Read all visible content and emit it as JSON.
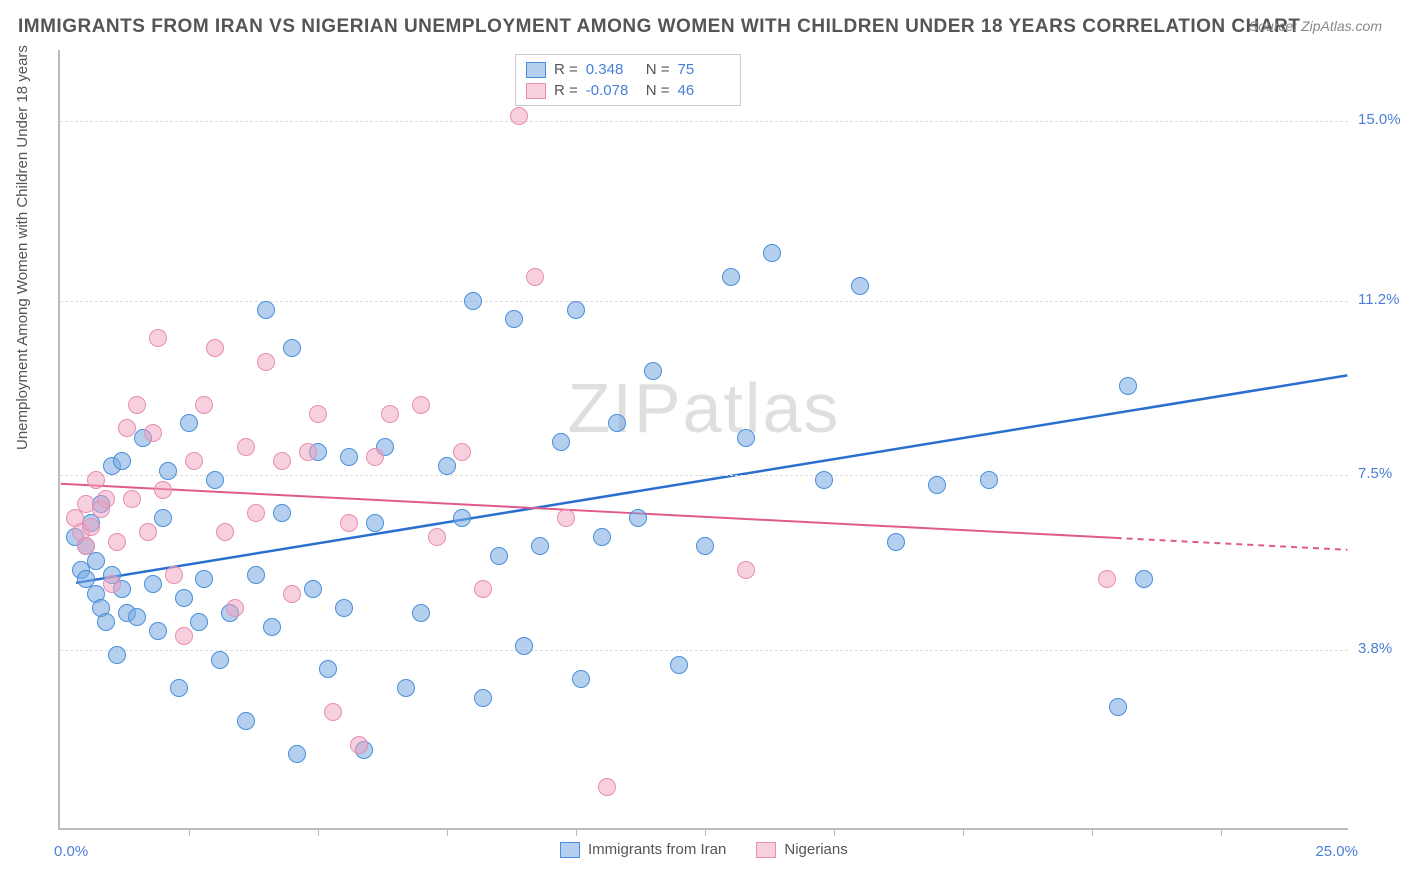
{
  "title": "IMMIGRANTS FROM IRAN VS NIGERIAN UNEMPLOYMENT AMONG WOMEN WITH CHILDREN UNDER 18 YEARS CORRELATION CHART",
  "source": "Source: ZipAtlas.com",
  "ylabel": "Unemployment Among Women with Children Under 18 years",
  "watermark": "ZIPatlas",
  "chart": {
    "type": "scatter",
    "xlim": [
      0,
      25
    ],
    "ylim": [
      0,
      16.5
    ],
    "xlabel_min": "0.0%",
    "xlabel_max": "25.0%",
    "yticks": [
      {
        "val": 3.8,
        "label": "3.8%"
      },
      {
        "val": 7.5,
        "label": "7.5%"
      },
      {
        "val": 11.2,
        "label": "11.2%"
      },
      {
        "val": 15.0,
        "label": "15.0%"
      }
    ],
    "xtick_positions": [
      2.5,
      5.0,
      7.5,
      10.0,
      12.5,
      15.0,
      17.5,
      20.0,
      22.5
    ],
    "grid_color": "#dddddd",
    "background": "#ffffff",
    "axis_color": "#bbbbbb",
    "marker_radius": 9,
    "series": [
      {
        "name": "Immigrants from Iran",
        "color_fill": "rgba(120,170,225,0.55)",
        "color_stroke": "#4a8fd8",
        "R": "0.348",
        "N": "75",
        "trend": {
          "x1": 0.3,
          "y1": 5.2,
          "x2": 25,
          "y2": 9.6,
          "solid_until_x": 25,
          "color": "#2a6fd0",
          "width": 2.5
        },
        "points": [
          [
            0.3,
            6.2
          ],
          [
            0.4,
            5.5
          ],
          [
            0.5,
            6.0
          ],
          [
            0.5,
            5.3
          ],
          [
            0.6,
            6.5
          ],
          [
            0.7,
            5.0
          ],
          [
            0.7,
            5.7
          ],
          [
            0.8,
            4.7
          ],
          [
            0.8,
            6.9
          ],
          [
            0.9,
            4.4
          ],
          [
            1.0,
            5.4
          ],
          [
            1.0,
            7.7
          ],
          [
            1.1,
            3.7
          ],
          [
            1.2,
            5.1
          ],
          [
            1.2,
            7.8
          ],
          [
            1.3,
            4.6
          ],
          [
            1.5,
            4.5
          ],
          [
            1.6,
            8.3
          ],
          [
            1.8,
            5.2
          ],
          [
            1.9,
            4.2
          ],
          [
            2.0,
            6.6
          ],
          [
            2.1,
            7.6
          ],
          [
            2.3,
            3.0
          ],
          [
            2.4,
            4.9
          ],
          [
            2.5,
            8.6
          ],
          [
            2.7,
            4.4
          ],
          [
            2.8,
            5.3
          ],
          [
            3.0,
            7.4
          ],
          [
            3.1,
            3.6
          ],
          [
            3.3,
            4.6
          ],
          [
            3.6,
            2.3
          ],
          [
            3.8,
            5.4
          ],
          [
            4.0,
            11.0
          ],
          [
            4.1,
            4.3
          ],
          [
            4.3,
            6.7
          ],
          [
            4.5,
            10.2
          ],
          [
            4.6,
            1.6
          ],
          [
            4.9,
            5.1
          ],
          [
            5.0,
            8.0
          ],
          [
            5.2,
            3.4
          ],
          [
            5.5,
            4.7
          ],
          [
            5.6,
            7.9
          ],
          [
            5.9,
            1.7
          ],
          [
            6.1,
            6.5
          ],
          [
            6.3,
            8.1
          ],
          [
            6.7,
            3.0
          ],
          [
            7.0,
            4.6
          ],
          [
            7.5,
            7.7
          ],
          [
            7.8,
            6.6
          ],
          [
            8.0,
            11.2
          ],
          [
            8.2,
            2.8
          ],
          [
            8.5,
            5.8
          ],
          [
            8.8,
            10.8
          ],
          [
            9.0,
            3.9
          ],
          [
            9.3,
            6.0
          ],
          [
            9.7,
            8.2
          ],
          [
            10.0,
            11.0
          ],
          [
            10.1,
            3.2
          ],
          [
            10.5,
            6.2
          ],
          [
            10.8,
            8.6
          ],
          [
            11.2,
            6.6
          ],
          [
            11.5,
            9.7
          ],
          [
            12.0,
            3.5
          ],
          [
            12.5,
            6.0
          ],
          [
            13.0,
            11.7
          ],
          [
            13.3,
            8.3
          ],
          [
            13.8,
            12.2
          ],
          [
            14.8,
            7.4
          ],
          [
            15.5,
            11.5
          ],
          [
            16.2,
            6.1
          ],
          [
            17.0,
            7.3
          ],
          [
            18.0,
            7.4
          ],
          [
            20.5,
            2.6
          ],
          [
            20.7,
            9.4
          ],
          [
            21.0,
            5.3
          ]
        ]
      },
      {
        "name": "Nigerians",
        "color_fill": "rgba(240,160,190,0.50)",
        "color_stroke": "#e78fb0",
        "R": "-0.078",
        "N": "46",
        "trend": {
          "x1": 0,
          "y1": 7.3,
          "x2": 25,
          "y2": 5.9,
          "solid_until_x": 20.5,
          "color": "#e05a8a",
          "width": 2
        },
        "points": [
          [
            0.3,
            6.6
          ],
          [
            0.4,
            6.3
          ],
          [
            0.5,
            6.9
          ],
          [
            0.5,
            6.0
          ],
          [
            0.6,
            6.4
          ],
          [
            0.7,
            7.4
          ],
          [
            0.8,
            6.8
          ],
          [
            0.9,
            7.0
          ],
          [
            1.0,
            5.2
          ],
          [
            1.1,
            6.1
          ],
          [
            1.3,
            8.5
          ],
          [
            1.4,
            7.0
          ],
          [
            1.5,
            9.0
          ],
          [
            1.7,
            6.3
          ],
          [
            1.8,
            8.4
          ],
          [
            1.9,
            10.4
          ],
          [
            2.0,
            7.2
          ],
          [
            2.2,
            5.4
          ],
          [
            2.4,
            4.1
          ],
          [
            2.6,
            7.8
          ],
          [
            2.8,
            9.0
          ],
          [
            3.0,
            10.2
          ],
          [
            3.2,
            6.3
          ],
          [
            3.4,
            4.7
          ],
          [
            3.6,
            8.1
          ],
          [
            3.8,
            6.7
          ],
          [
            4.0,
            9.9
          ],
          [
            4.3,
            7.8
          ],
          [
            4.5,
            5.0
          ],
          [
            4.8,
            8.0
          ],
          [
            5.0,
            8.8
          ],
          [
            5.3,
            2.5
          ],
          [
            5.6,
            6.5
          ],
          [
            5.8,
            1.8
          ],
          [
            6.1,
            7.9
          ],
          [
            6.4,
            8.8
          ],
          [
            7.0,
            9.0
          ],
          [
            7.3,
            6.2
          ],
          [
            7.8,
            8.0
          ],
          [
            8.2,
            5.1
          ],
          [
            8.9,
            15.1
          ],
          [
            9.2,
            11.7
          ],
          [
            9.8,
            6.6
          ],
          [
            10.6,
            0.9
          ],
          [
            13.3,
            5.5
          ],
          [
            20.3,
            5.3
          ]
        ]
      }
    ]
  },
  "legend_labels": {
    "R_label": "R =",
    "N_label": "N ="
  }
}
